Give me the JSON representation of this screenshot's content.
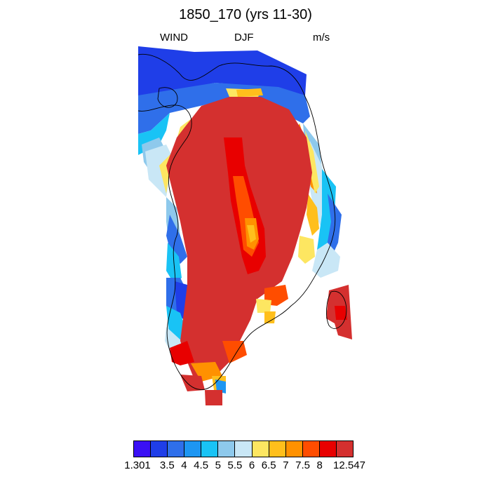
{
  "title": "1850_170 (yrs 11-30)",
  "left_label": "WIND",
  "center_label": "DJF",
  "right_label": "m/s",
  "colorbar": {
    "colors": [
      "#3a10f5",
      "#1f3ee8",
      "#2f6fea",
      "#1d96f2",
      "#19c3f5",
      "#8ec9ec",
      "#c9e7f6",
      "#fde661",
      "#ffbf1c",
      "#ff9100",
      "#ff4d00",
      "#e80000",
      "#d4302f"
    ],
    "tick_labels": [
      "1.301",
      "3.5",
      "4",
      "4.5",
      "5",
      "5.5",
      "6",
      "6.5",
      "7",
      "7.5",
      "8",
      "12.547"
    ]
  }
}
